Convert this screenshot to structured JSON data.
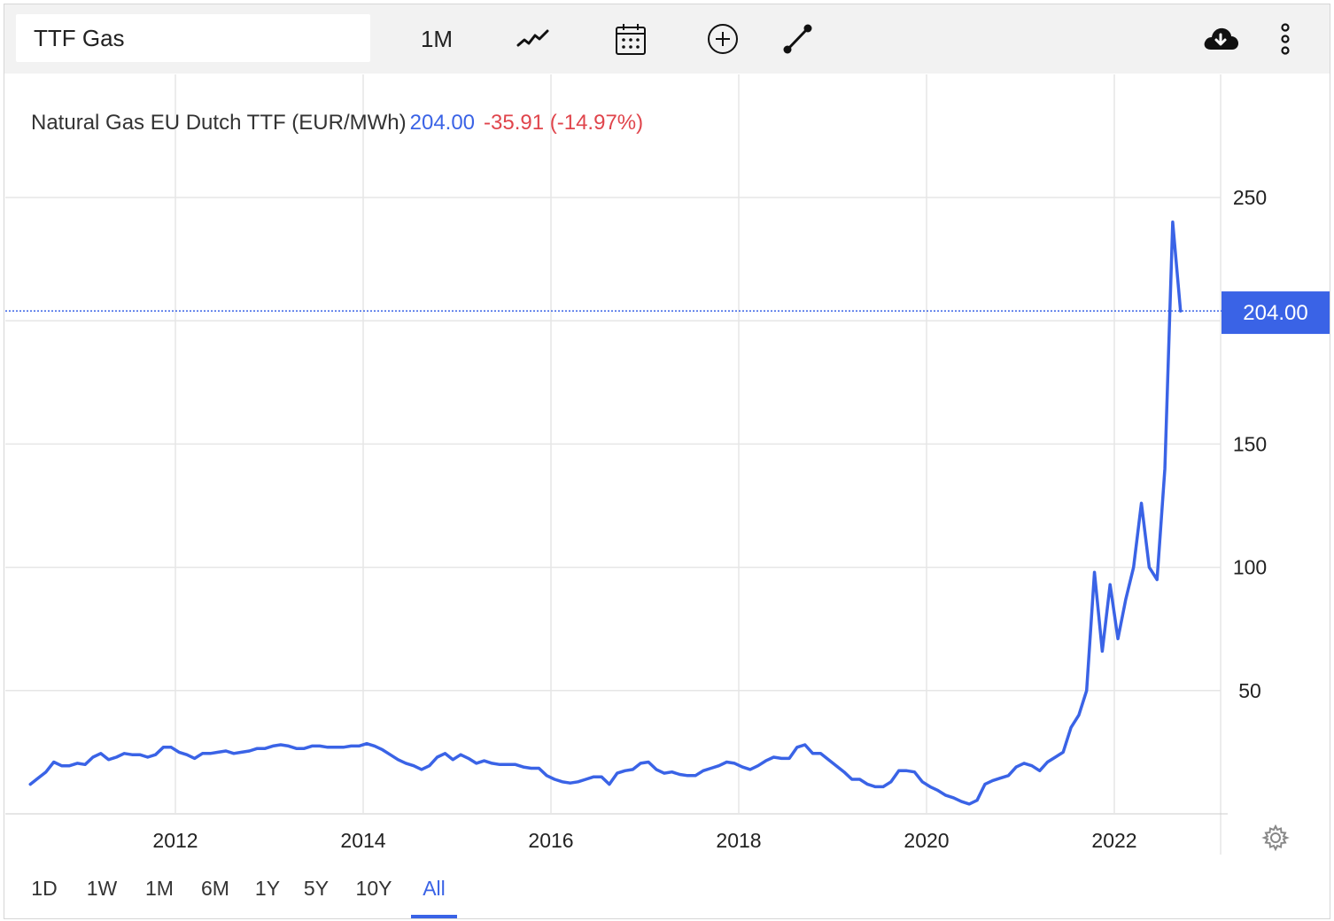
{
  "toolbar": {
    "symbol": "TTF Gas",
    "interval_label": "1M",
    "icons": [
      "line-chart-icon",
      "calendar-icon",
      "plus-circle-icon",
      "draw-line-icon",
      "cloud-download-icon",
      "more-vertical-icon"
    ]
  },
  "legend": {
    "name": "Natural Gas EU Dutch TTF (EUR/MWh)",
    "price": "204.00",
    "change": "-35.91 (-14.97%)"
  },
  "price_tag": "204.00",
  "range_buttons": [
    "1D",
    "1W",
    "1M",
    "6M",
    "1Y",
    "5Y",
    "10Y",
    "All"
  ],
  "active_range": "All",
  "colors": {
    "line": "#3a63e6",
    "negative": "#e0454c",
    "grid": "#e6e6e6",
    "toolbar_bg": "#f2f2f2"
  },
  "chart_data": {
    "type": "line",
    "title": "",
    "xlabel": "",
    "ylabel": "",
    "x_ticks": [
      "2012",
      "2014",
      "2016",
      "2018",
      "2020",
      "2022"
    ],
    "y_ticks": [
      "50",
      "100",
      "150",
      "250"
    ],
    "ylim": [
      0,
      290
    ],
    "xlim": [
      "2010-06-15",
      "2022-11-15"
    ],
    "grid": true,
    "last_value_line": 204.0,
    "series": [
      {
        "x": [
          "2010-06",
          "2010-07",
          "2010-08",
          "2010-09",
          "2010-10",
          "2010-11",
          "2010-12",
          "2011-01",
          "2011-02",
          "2011-03",
          "2011-04",
          "2011-05",
          "2011-06",
          "2011-07",
          "2011-08",
          "2011-09",
          "2011-10",
          "2011-11",
          "2011-12",
          "2012-01",
          "2012-02",
          "2012-03",
          "2012-04",
          "2012-05",
          "2012-06",
          "2012-07",
          "2012-08",
          "2012-09",
          "2012-10",
          "2012-11",
          "2012-12",
          "2013-01",
          "2013-02",
          "2013-03",
          "2013-04",
          "2013-05",
          "2013-06",
          "2013-07",
          "2013-08",
          "2013-09",
          "2013-10",
          "2013-11",
          "2013-12",
          "2014-01",
          "2014-02",
          "2014-03",
          "2014-04",
          "2014-05",
          "2014-06",
          "2014-07",
          "2014-08",
          "2014-09",
          "2014-10",
          "2014-11",
          "2014-12",
          "2015-01",
          "2015-02",
          "2015-03",
          "2015-04",
          "2015-05",
          "2015-06",
          "2015-07",
          "2015-08",
          "2015-09",
          "2015-10",
          "2015-11",
          "2015-12",
          "2016-01",
          "2016-02",
          "2016-03",
          "2016-04",
          "2016-05",
          "2016-06",
          "2016-07",
          "2016-08",
          "2016-09",
          "2016-10",
          "2016-11",
          "2016-12",
          "2017-01",
          "2017-02",
          "2017-03",
          "2017-04",
          "2017-05",
          "2017-06",
          "2017-07",
          "2017-08",
          "2017-09",
          "2017-10",
          "2017-11",
          "2017-12",
          "2018-01",
          "2018-02",
          "2018-03",
          "2018-04",
          "2018-05",
          "2018-06",
          "2018-07",
          "2018-08",
          "2018-09",
          "2018-10",
          "2018-11",
          "2018-12",
          "2019-01",
          "2019-02",
          "2019-03",
          "2019-04",
          "2019-05",
          "2019-06",
          "2019-07",
          "2019-08",
          "2019-09",
          "2019-10",
          "2019-11",
          "2019-12",
          "2020-01",
          "2020-02",
          "2020-03",
          "2020-04",
          "2020-05",
          "2020-06",
          "2020-07",
          "2020-08",
          "2020-09",
          "2020-10",
          "2020-11",
          "2020-12",
          "2021-01",
          "2021-02",
          "2021-03",
          "2021-04",
          "2021-05",
          "2021-06",
          "2021-07",
          "2021-08",
          "2021-09",
          "2021-10",
          "2021-11",
          "2021-12",
          "2022-01",
          "2022-02",
          "2022-03",
          "2022-04",
          "2022-05",
          "2022-06",
          "2022-07",
          "2022-08",
          "2022-09"
        ],
        "values": [
          12.0,
          14.5,
          17.0,
          21.0,
          19.5,
          19.5,
          20.5,
          20.0,
          23.0,
          24.5,
          22.0,
          23.0,
          24.5,
          24.0,
          24.0,
          23.0,
          24.0,
          27.0,
          27.0,
          25.0,
          24.0,
          22.5,
          24.5,
          24.5,
          25.0,
          25.5,
          24.5,
          25.0,
          25.5,
          26.5,
          26.5,
          27.5,
          28.0,
          27.5,
          26.5,
          26.5,
          27.5,
          27.5,
          27.0,
          27.0,
          27.0,
          27.5,
          27.5,
          28.5,
          27.5,
          26.0,
          24.0,
          22.0,
          20.5,
          19.5,
          18.0,
          19.5,
          23.0,
          24.5,
          22.0,
          24.0,
          22.5,
          20.5,
          21.5,
          20.5,
          20.0,
          20.0,
          20.0,
          19.0,
          18.5,
          18.5,
          15.5,
          14.0,
          13.0,
          12.5,
          13.0,
          14.0,
          15.0,
          15.0,
          12.0,
          16.5,
          17.5,
          18.0,
          20.5,
          21.0,
          18.0,
          16.5,
          17.0,
          16.0,
          15.5,
          15.5,
          17.5,
          18.5,
          19.5,
          21.0,
          20.5,
          19.0,
          18.0,
          19.5,
          21.5,
          23.0,
          22.5,
          22.5,
          27.0,
          28.0,
          24.5,
          24.5,
          22.0,
          19.5,
          17.0,
          14.0,
          14.0,
          12.0,
          11.0,
          11.0,
          13.0,
          17.5,
          17.5,
          17.0,
          13.0,
          11.0,
          9.5,
          7.5,
          6.5,
          5.0,
          4.0,
          5.5,
          12.0,
          13.5,
          14.5,
          15.5,
          19.0,
          20.5,
          19.5,
          17.5,
          21.0,
          23.0,
          25.0,
          35.0,
          40.0,
          50.0,
          98.0,
          66.0,
          93.0,
          71.0,
          87.0,
          100.0,
          126.0,
          100.0,
          95.0,
          140.0,
          240.0,
          204.0
        ]
      }
    ]
  }
}
